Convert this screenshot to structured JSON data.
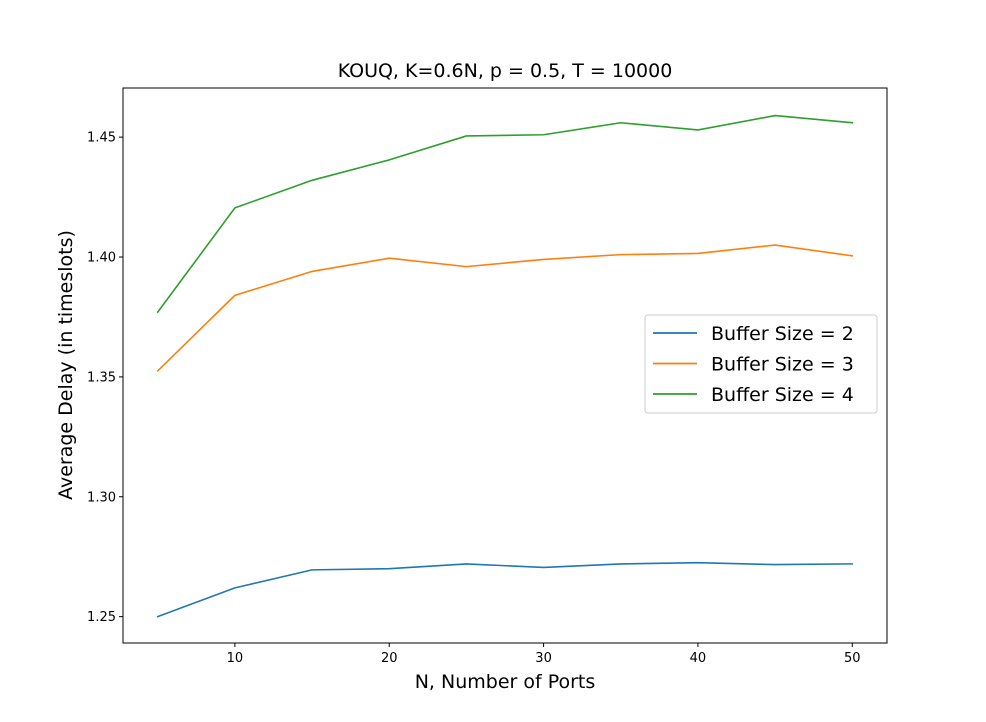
{
  "chart_data": {
    "type": "line",
    "title": "KOUQ, K=0.6N, p = 0.5, T = 10000",
    "xlabel": "N, Number of Ports",
    "ylabel": "Average Delay (in timeslots)",
    "xlim": [
      2.75,
      52.25
    ],
    "ylim": [
      1.239,
      1.4705
    ],
    "xticks": [
      10,
      20,
      30,
      40,
      50
    ],
    "yticks": [
      1.25,
      1.3,
      1.35,
      1.4,
      1.45
    ],
    "ytick_labels": [
      "1.25",
      "1.30",
      "1.35",
      "1.40",
      "1.45"
    ],
    "grid": false,
    "legend_position": "center-right",
    "x": [
      5,
      10,
      15,
      20,
      25,
      30,
      35,
      40,
      45,
      50
    ],
    "series": [
      {
        "name": "Buffer Size = 2",
        "color": "#1f77b4",
        "values": [
          1.25,
          1.262,
          1.2695,
          1.27,
          1.272,
          1.2705,
          1.272,
          1.2725,
          1.2717,
          1.272
        ]
      },
      {
        "name": "Buffer Size = 3",
        "color": "#ff7f0e",
        "values": [
          1.3525,
          1.384,
          1.394,
          1.3995,
          1.396,
          1.399,
          1.401,
          1.4015,
          1.405,
          1.4005
        ]
      },
      {
        "name": "Buffer Size = 4",
        "color": "#2ca02c",
        "values": [
          1.377,
          1.4205,
          1.432,
          1.4405,
          1.4505,
          1.451,
          1.456,
          1.453,
          1.459,
          1.456
        ]
      }
    ]
  }
}
